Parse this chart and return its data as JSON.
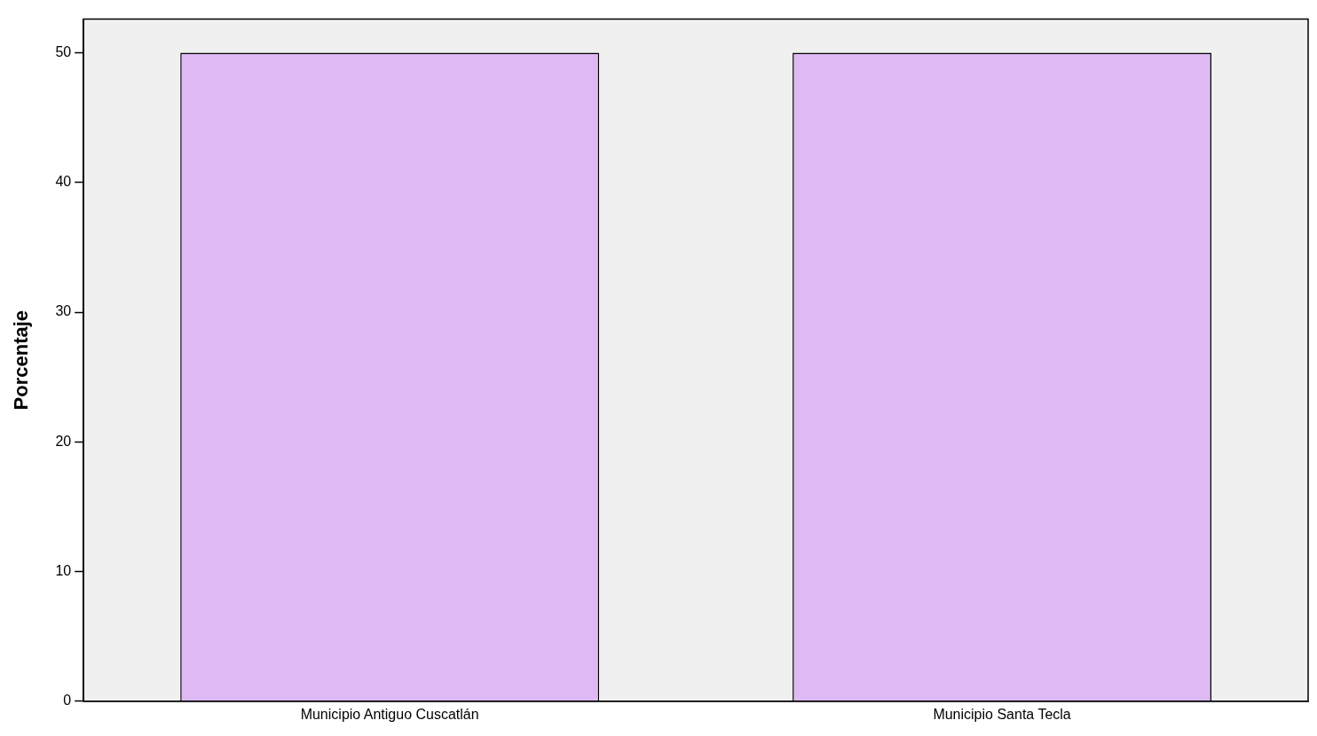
{
  "chart_data": {
    "type": "bar",
    "ylabel": "Porcentaje",
    "categories": [
      "Municipio Antiguo Cuscatlán",
      "Municipio Santa Tecla"
    ],
    "values": [
      50,
      50
    ],
    "color": "#dfb9f3",
    "ylim": [
      0,
      52.6
    ],
    "yticks": [
      0,
      10,
      20,
      30,
      40,
      50
    ],
    "grid": false
  }
}
